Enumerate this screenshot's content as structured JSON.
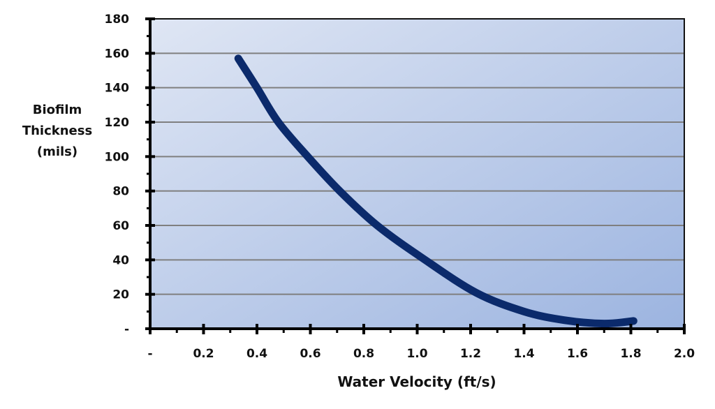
{
  "chart_data": {
    "type": "line",
    "title": "",
    "xlabel": "Water Velocity (ft/s)",
    "ylabel_lines": [
      "Biofilm",
      "Thickness",
      "(mils)"
    ],
    "ylabel": "Biofilm Thickness (mils)",
    "xlim": [
      0,
      2.0
    ],
    "ylim": [
      0,
      180
    ],
    "x_ticks": [
      0,
      0.2,
      0.4,
      0.6,
      0.8,
      1.0,
      1.2,
      1.4,
      1.6,
      1.8,
      2.0
    ],
    "x_tick_labels": [
      "-",
      "0.2",
      "0.4",
      "0.6",
      "0.8",
      "1.0",
      "1.2",
      "1.4",
      "1.6",
      "1.8",
      "2.0"
    ],
    "x_minor_step": 0.1,
    "y_ticks": [
      0,
      20,
      40,
      60,
      80,
      100,
      120,
      140,
      160,
      180
    ],
    "y_tick_labels": [
      "-",
      "20",
      "40",
      "60",
      "80",
      "100",
      "120",
      "140",
      "160",
      "180"
    ],
    "y_minor_step": 10,
    "grid": "horizontal major",
    "legend": "none",
    "series": [
      {
        "name": "Biofilm Thickness",
        "color": "#0b2a6b",
        "x": [
          0.33,
          0.4,
          0.48,
          0.59,
          0.71,
          0.85,
          1.02,
          1.22,
          1.4,
          1.55,
          1.7,
          1.81
        ],
        "y": [
          157,
          140,
          120,
          100,
          80,
          60,
          41,
          21,
          10,
          5,
          3,
          4.5
        ]
      }
    ],
    "background_gradient": [
      "#dfe6f4",
      "#9cb4e0"
    ]
  }
}
